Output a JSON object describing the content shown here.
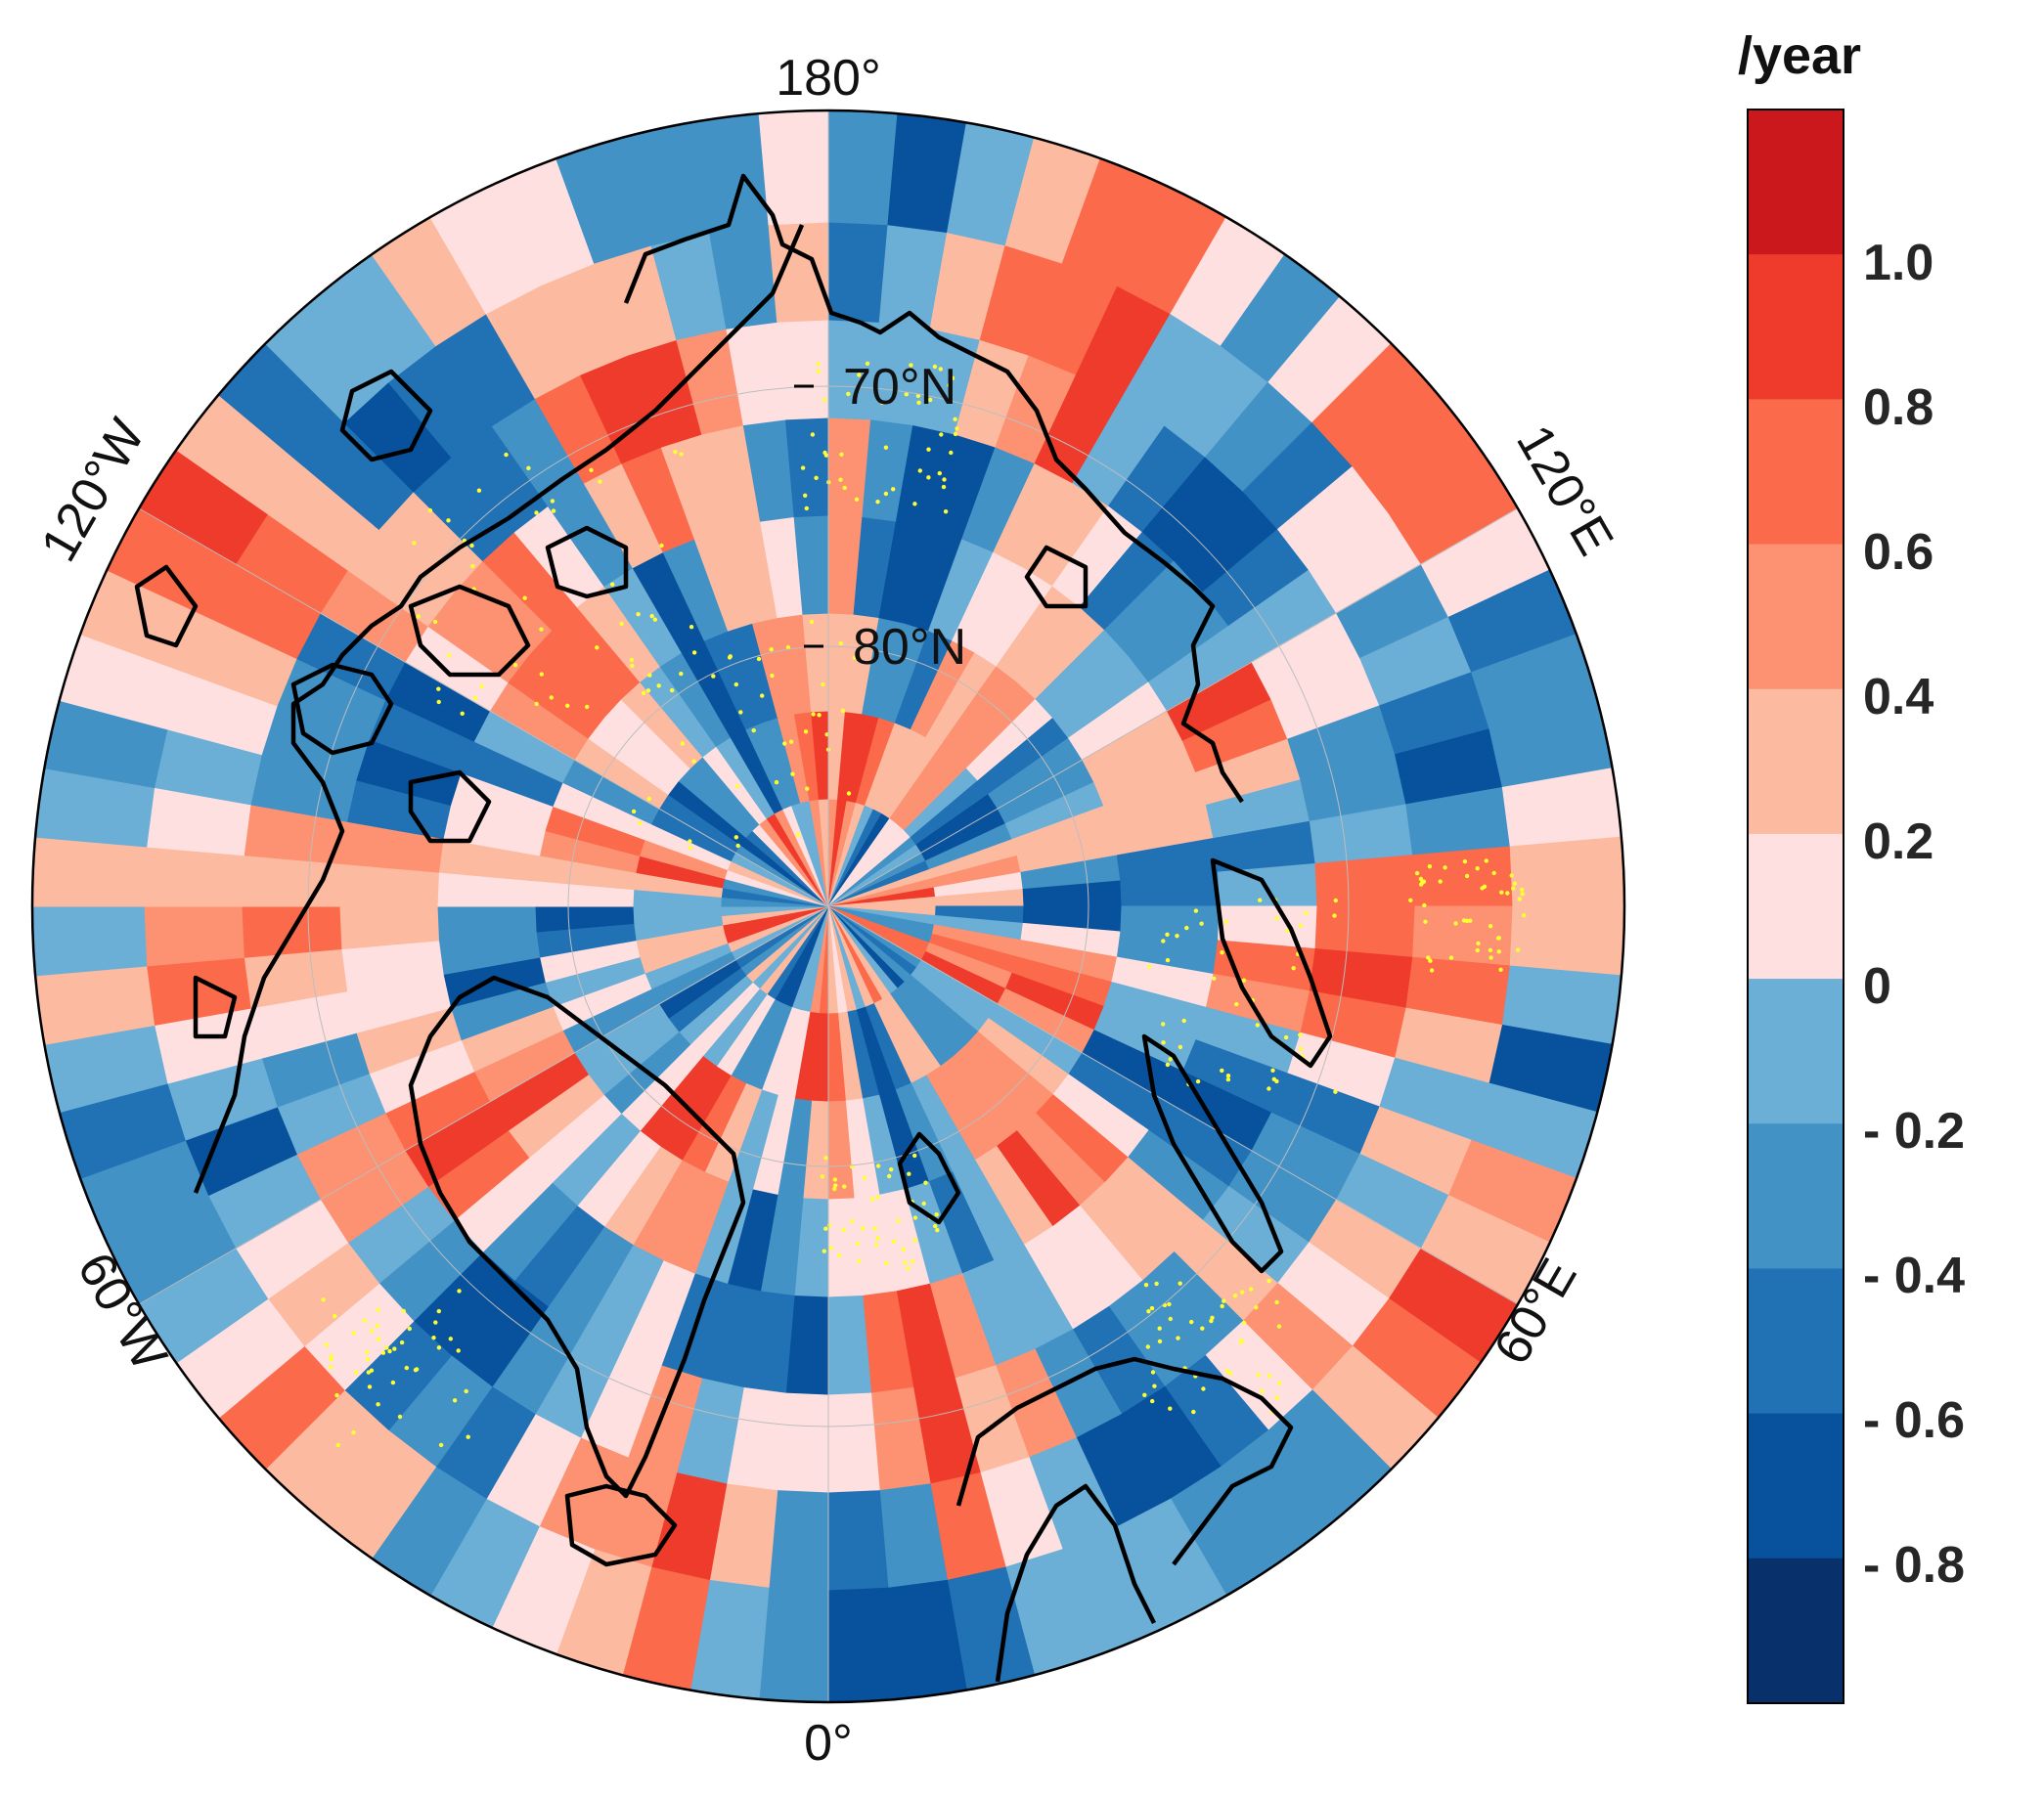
{
  "map": {
    "projection": "north-polar-stereographic",
    "meridian_labels": {
      "top": "180°",
      "bottom": "0°",
      "upper_left": "120°W",
      "upper_right": "120°E",
      "lower_left": "60°W",
      "lower_right": "60°E"
    },
    "parallel_labels": [
      "70°N",
      "80°N"
    ],
    "stippling_color": "#ffff33",
    "coastline_color": "#000000"
  },
  "colorbar": {
    "title": "/year",
    "tick_labels": [
      "1.0",
      "0.8",
      "0.6",
      "0.4",
      "0.2",
      "0",
      "- 0.2",
      "- 0.4",
      "- 0.6",
      "- 0.8"
    ],
    "colors": [
      "#cb181d",
      "#ef3b2c",
      "#fb6a4a",
      "#fc9272",
      "#fcbba1",
      "#fee0e0",
      "#6baed6",
      "#4292c6",
      "#2171b5",
      "#08519c",
      "#08306b"
    ]
  }
}
